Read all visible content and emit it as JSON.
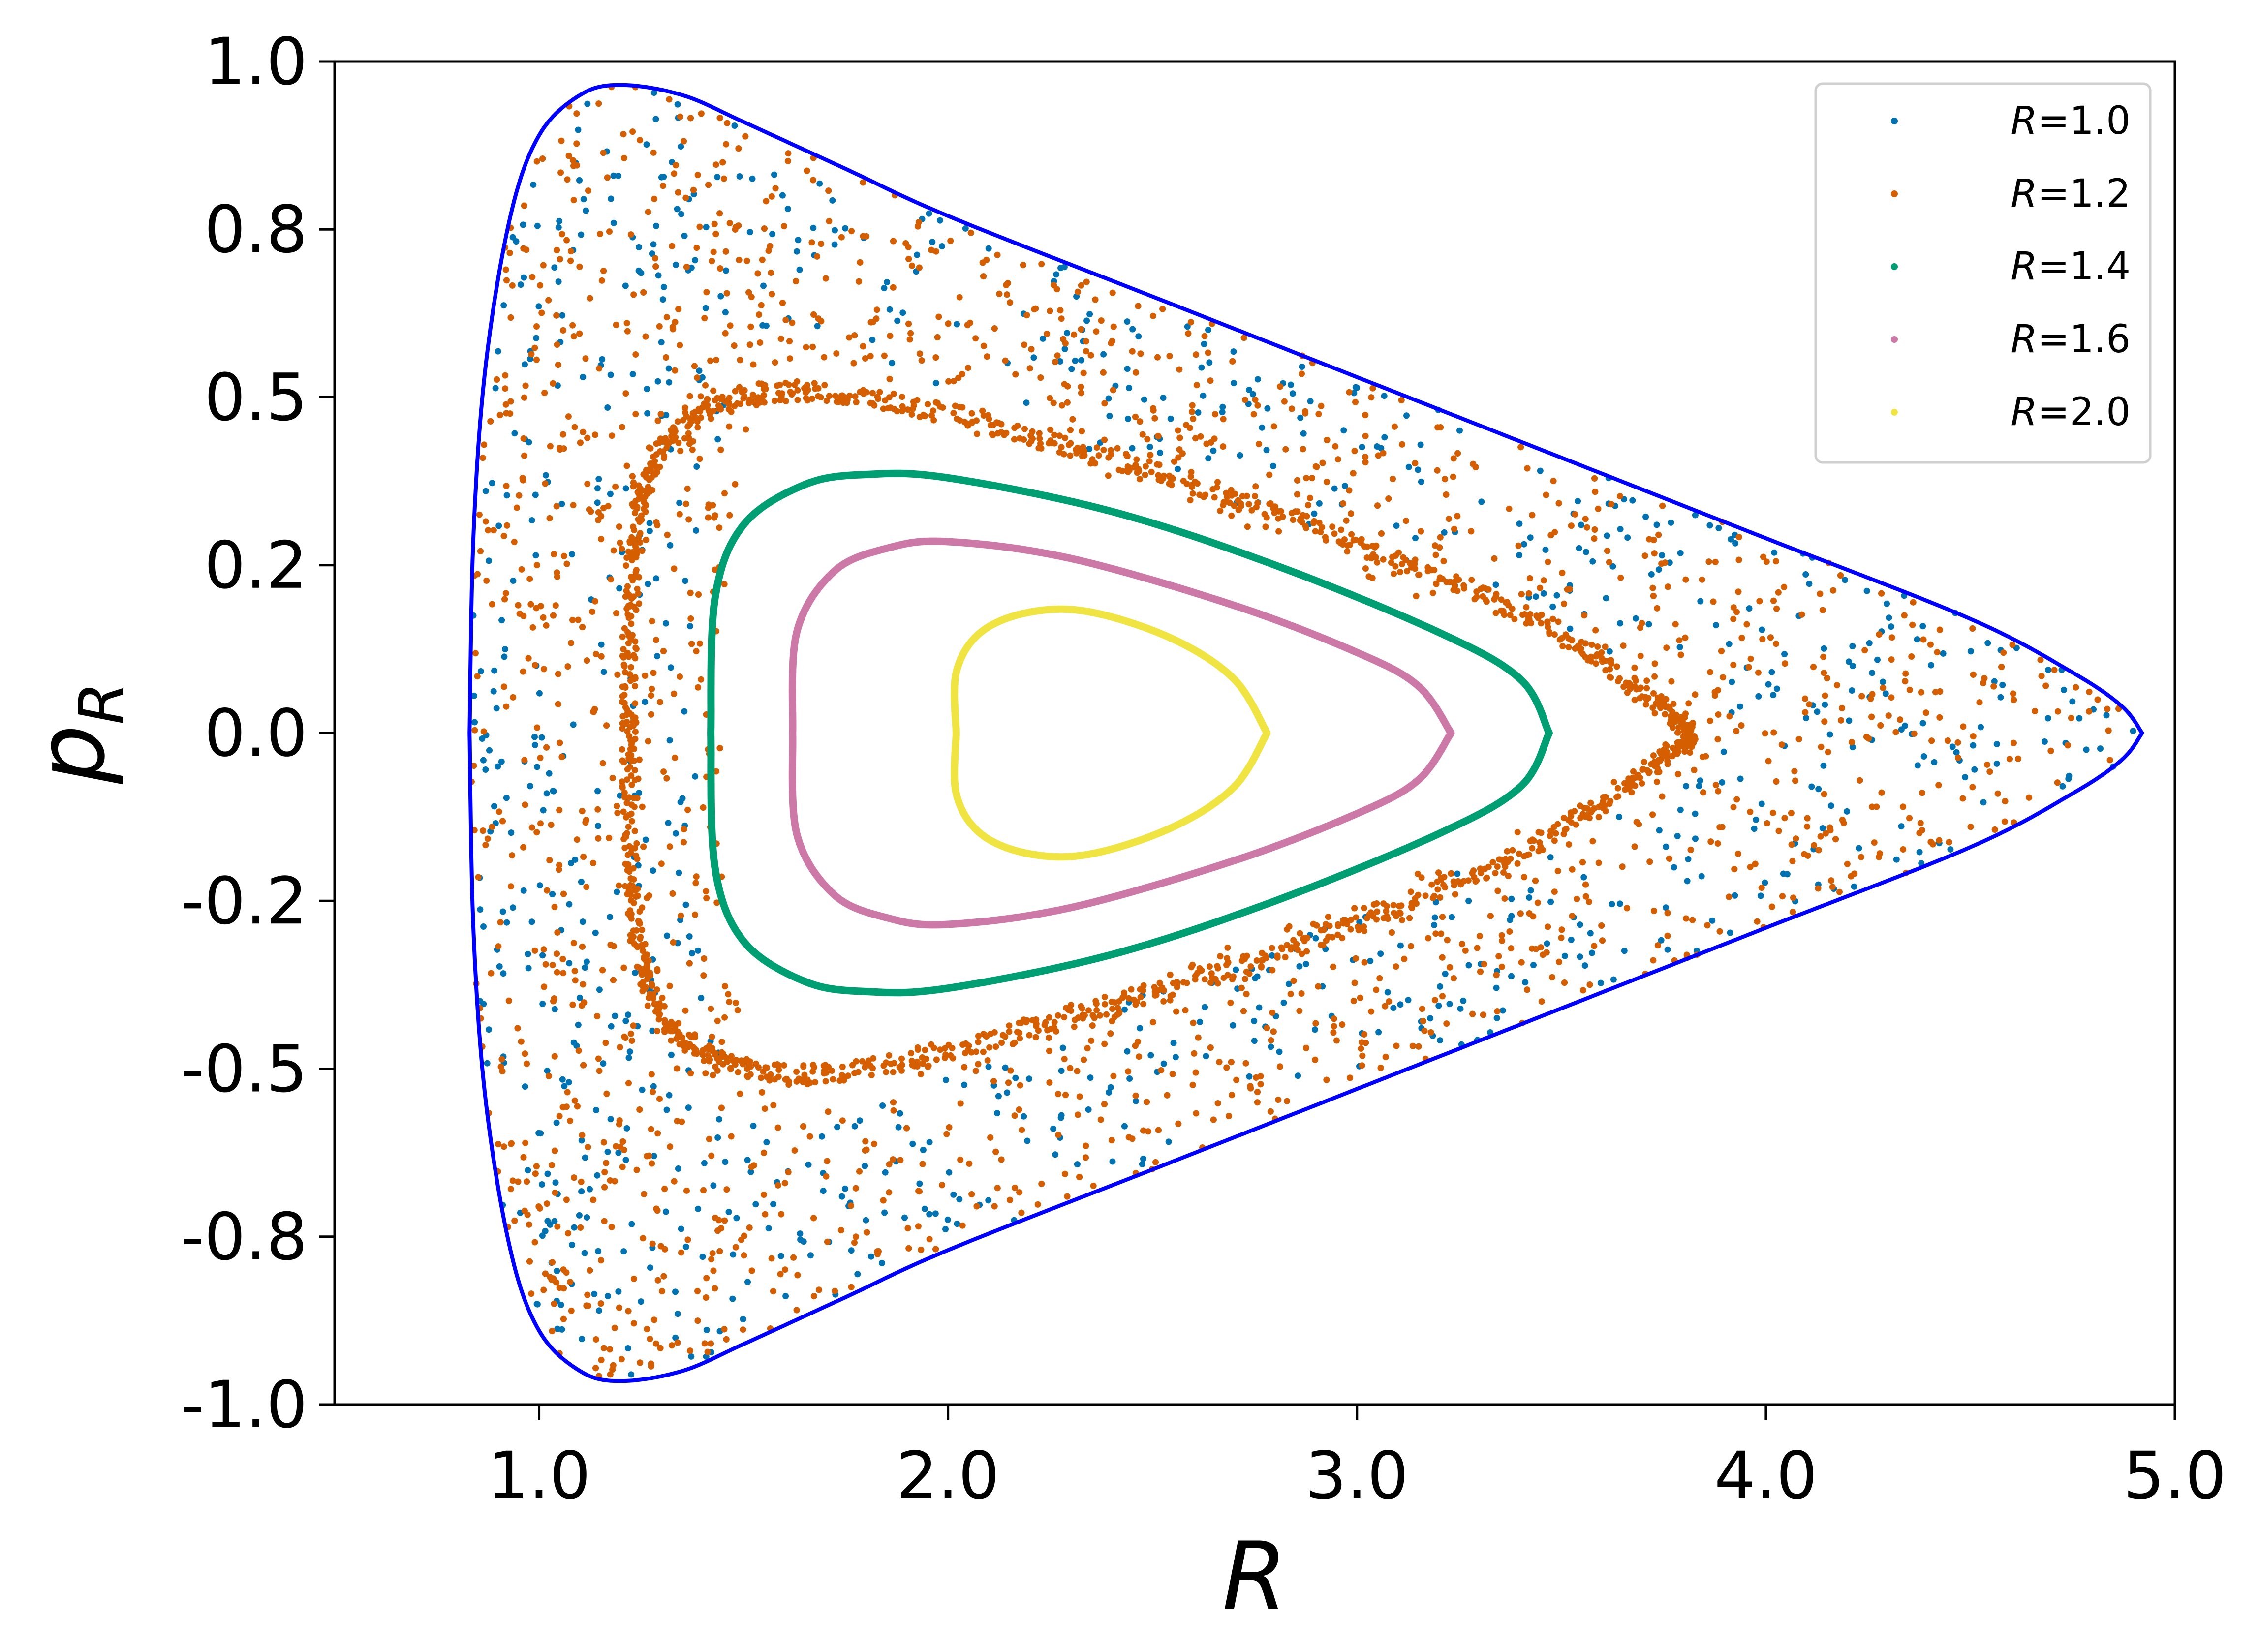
{
  "chart_data": {
    "type": "scatter",
    "title": "",
    "xlabel": "R",
    "ylabel_main": "p",
    "ylabel_sub": "R",
    "xlim": [
      0.5,
      5.0
    ],
    "ylim": [
      -1.0,
      1.0
    ],
    "x_ticks": [
      1.0,
      2.0,
      3.0,
      4.0,
      5.0
    ],
    "x_tick_labels": [
      "1.0",
      "2.0",
      "3.0",
      "4.0",
      "5.0"
    ],
    "y_ticks": [
      1.0,
      0.75,
      0.5,
      0.25,
      0.0,
      -0.25,
      -0.5,
      -0.75,
      -1.0
    ],
    "y_tick_labels": [
      "1.0",
      "0.8",
      "0.5",
      "0.2",
      "0.0",
      "-0.2",
      "-0.5",
      "-0.8",
      "-1.0"
    ],
    "grid": false,
    "legend_position": "top-right",
    "boundary": {
      "color": "#0000ff",
      "upper": [
        [
          0.83,
          0.0
        ],
        [
          0.84,
          0.3
        ],
        [
          0.87,
          0.55
        ],
        [
          0.93,
          0.77
        ],
        [
          1.0,
          0.89
        ],
        [
          1.1,
          0.95
        ],
        [
          1.2,
          0.965
        ],
        [
          1.35,
          0.95
        ],
        [
          1.5,
          0.91
        ],
        [
          1.75,
          0.84
        ],
        [
          2.0,
          0.77
        ],
        [
          2.5,
          0.65
        ],
        [
          3.0,
          0.53
        ],
        [
          3.5,
          0.41
        ],
        [
          4.0,
          0.29
        ],
        [
          4.5,
          0.17
        ],
        [
          4.75,
          0.09
        ],
        [
          4.87,
          0.04
        ],
        [
          4.92,
          0.0
        ]
      ]
    },
    "legend_entries": [
      {
        "prefix": "R",
        "text": "=1.0",
        "color": "#0072b2"
      },
      {
        "prefix": "R",
        "text": "=1.2",
        "color": "#d55e00"
      },
      {
        "prefix": "R",
        "text": "=1.4",
        "color": "#009e73"
      },
      {
        "prefix": "R",
        "text": "=1.6",
        "color": "#cc79a7"
      },
      {
        "prefix": "R",
        "text": "=2.0",
        "color": "#f0e442"
      }
    ],
    "series": [
      {
        "name": "R=1.0",
        "color": "#0072b2",
        "kind": "chaotic",
        "count": 1500,
        "inner_scale": 0.62
      },
      {
        "name": "R=1.2",
        "color": "#d55e00",
        "kind": "chaotic",
        "count": 2200,
        "inner_scale": 0.58,
        "separatrix": [
          [
            1.22,
            0.0
          ],
          [
            1.23,
            0.25
          ],
          [
            1.3,
            0.42
          ],
          [
            1.5,
            0.5
          ],
          [
            1.8,
            0.5
          ],
          [
            2.2,
            0.44
          ],
          [
            2.6,
            0.37
          ],
          [
            3.0,
            0.28
          ],
          [
            3.4,
            0.18
          ],
          [
            3.7,
            0.06
          ],
          [
            3.82,
            0.0
          ]
        ]
      },
      {
        "name": "R=1.4",
        "color": "#009e73",
        "kind": "orbit",
        "upper": [
          [
            1.42,
            0.0
          ],
          [
            1.43,
            0.2
          ],
          [
            1.5,
            0.31
          ],
          [
            1.65,
            0.37
          ],
          [
            1.8,
            0.385
          ],
          [
            2.0,
            0.38
          ],
          [
            2.4,
            0.33
          ],
          [
            2.8,
            0.25
          ],
          [
            3.2,
            0.15
          ],
          [
            3.4,
            0.08
          ],
          [
            3.47,
            0.0
          ]
        ]
      },
      {
        "name": "R=1.6",
        "color": "#cc79a7",
        "kind": "orbit",
        "upper": [
          [
            1.62,
            0.0
          ],
          [
            1.63,
            0.15
          ],
          [
            1.72,
            0.24
          ],
          [
            1.85,
            0.275
          ],
          [
            2.0,
            0.285
          ],
          [
            2.3,
            0.26
          ],
          [
            2.7,
            0.19
          ],
          [
            3.0,
            0.12
          ],
          [
            3.15,
            0.07
          ],
          [
            3.23,
            0.0
          ]
        ]
      },
      {
        "name": "R=2.0",
        "color": "#f0e442",
        "kind": "orbit",
        "upper": [
          [
            2.02,
            0.0
          ],
          [
            2.02,
            0.09
          ],
          [
            2.08,
            0.15
          ],
          [
            2.2,
            0.18
          ],
          [
            2.35,
            0.18
          ],
          [
            2.55,
            0.14
          ],
          [
            2.7,
            0.08
          ],
          [
            2.78,
            0.0
          ]
        ]
      }
    ]
  }
}
